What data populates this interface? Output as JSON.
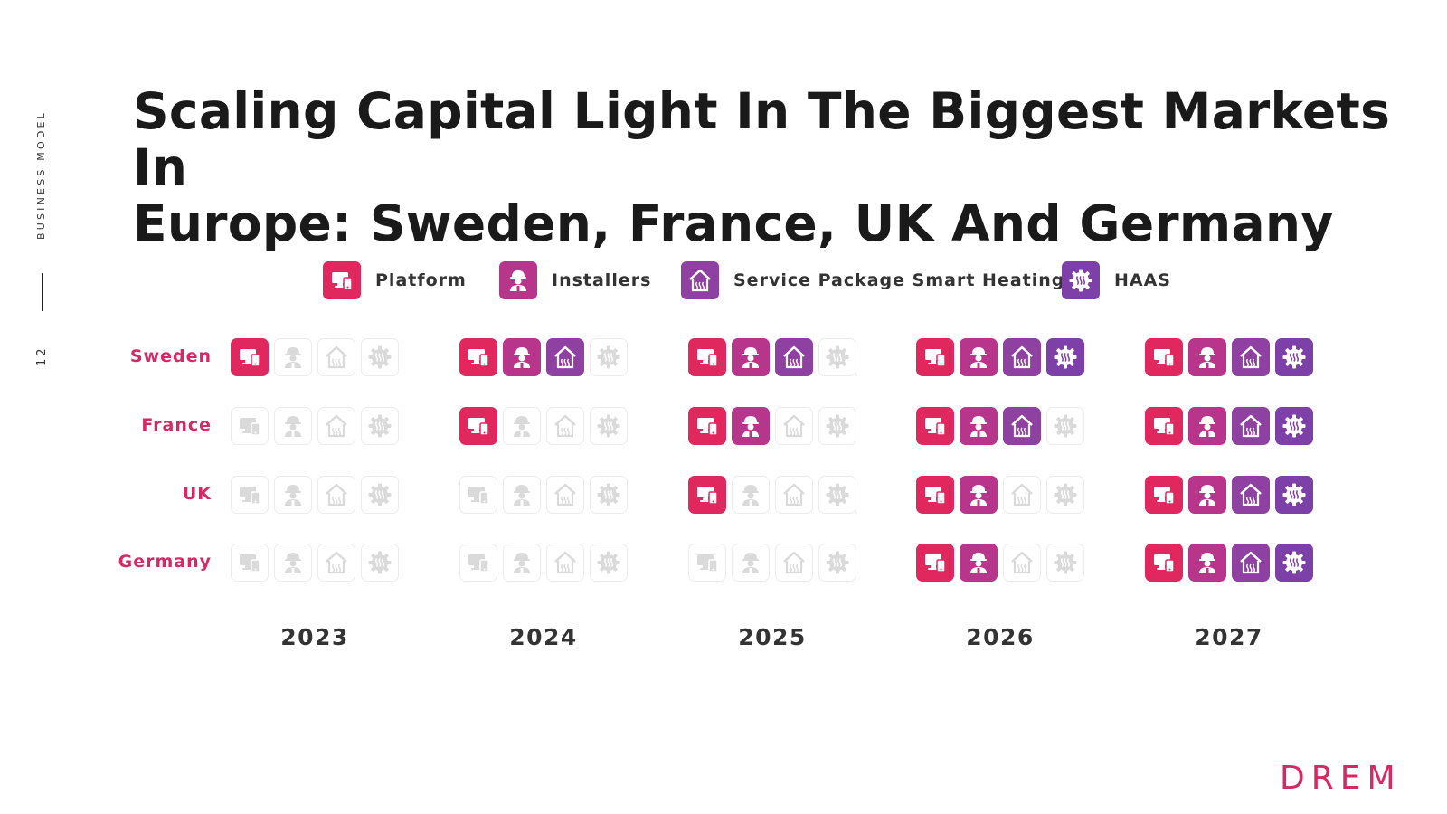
{
  "sidebar": {
    "section_label": "BUSINESS MODEL",
    "page_number": "12"
  },
  "title": {
    "line1": "Scaling Capital Light In The Biggest Markets In",
    "line2": "Europe: Sweden, France, UK And Germany"
  },
  "legend": [
    {
      "key": "platform",
      "label": "Platform",
      "icon": "platform-icon",
      "color": "#e0285f"
    },
    {
      "key": "installers",
      "label": "Installers",
      "icon": "installer-icon",
      "color": "#b8358c"
    },
    {
      "key": "service",
      "label": "Service Package Smart Heating",
      "icon": "house-heating-icon",
      "color": "#8e41a0"
    },
    {
      "key": "haas",
      "label": "HAAS",
      "icon": "gear-heating-icon",
      "color": "#7d3fa8"
    }
  ],
  "years": [
    "2023",
    "2024",
    "2025",
    "2026",
    "2027"
  ],
  "countries": [
    {
      "name": "Sweden",
      "levels": [
        1,
        3,
        3,
        4,
        4
      ]
    },
    {
      "name": "France",
      "levels": [
        0,
        1,
        2,
        3,
        4
      ]
    },
    {
      "name": "UK",
      "levels": [
        0,
        0,
        1,
        2,
        4
      ]
    },
    {
      "name": "Germany",
      "levels": [
        0,
        0,
        0,
        2,
        4
      ]
    }
  ],
  "colors": {
    "accent": "#d42a63",
    "inactive_border": "#ececec"
  },
  "logo": "DREM"
}
